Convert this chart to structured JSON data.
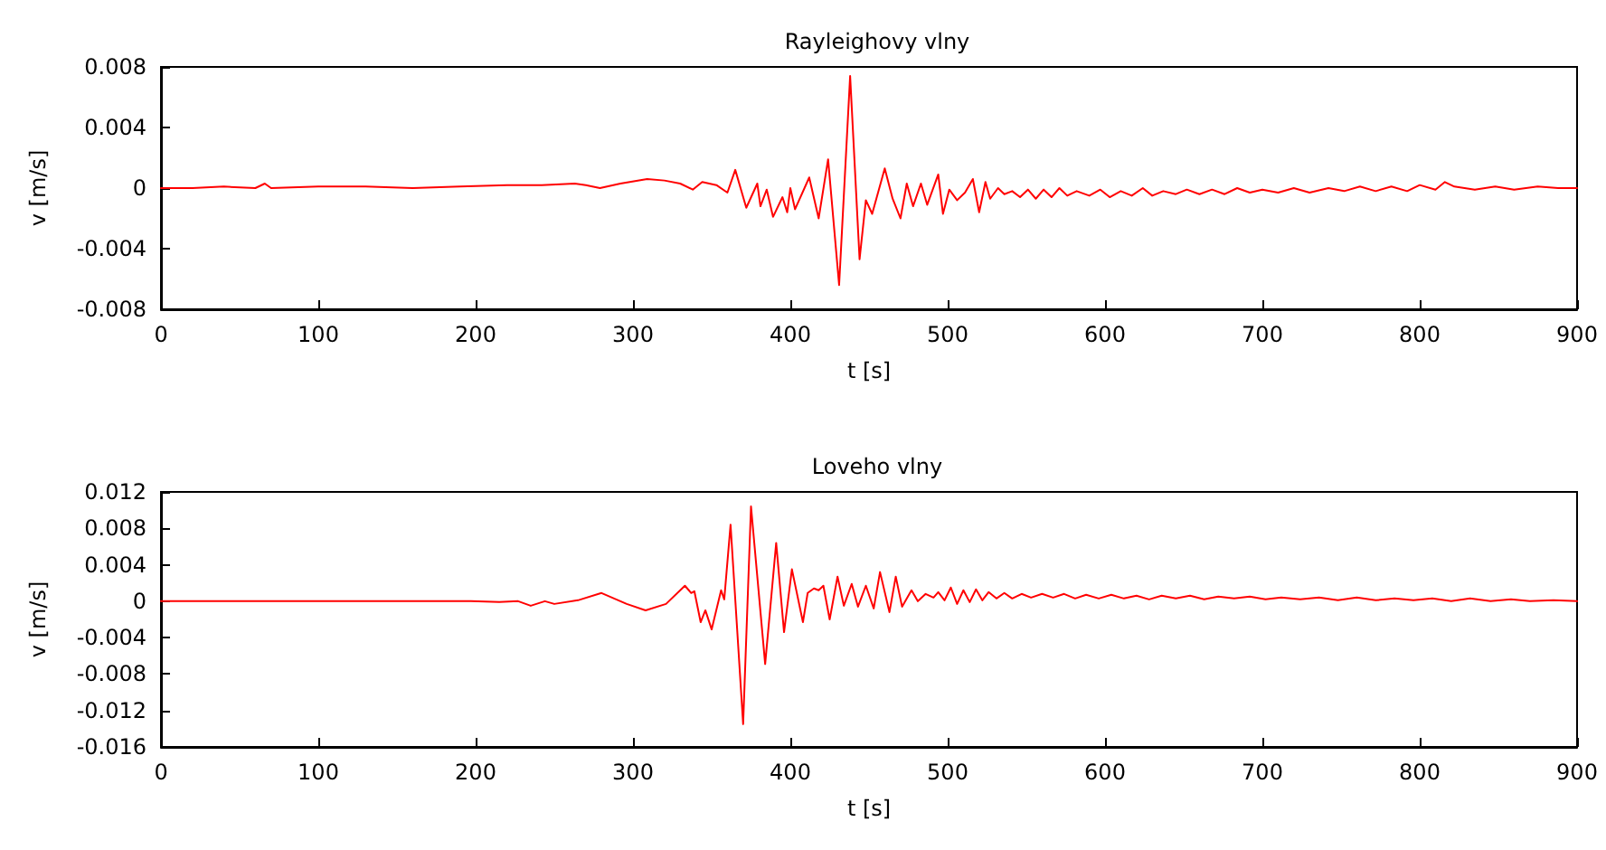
{
  "chart_data": [
    {
      "type": "line",
      "title": "Rayleighovy vlny",
      "xlabel": "t [s]",
      "ylabel": "v [m/s]",
      "xlim": [
        0,
        900
      ],
      "xticks": [
        0,
        100,
        200,
        300,
        400,
        500,
        600,
        700,
        800,
        900
      ],
      "ylim": [
        -0.008,
        0.008
      ],
      "yticks": [
        -0.008,
        -0.004,
        0,
        0.004,
        0.008
      ],
      "grid": false,
      "marker": "none",
      "line_style": "solid",
      "series": [
        {
          "color": "#ff0000",
          "x": [
            0,
            20,
            40,
            60,
            66,
            70,
            100,
            130,
            160,
            190,
            220,
            242,
            263,
            270,
            279,
            292,
            309,
            320,
            330,
            338,
            344,
            353,
            360,
            365,
            372,
            379,
            381,
            385,
            389,
            395,
            398,
            400,
            403,
            412,
            418,
            424,
            431,
            438,
            444,
            448,
            452,
            460,
            465,
            470,
            474,
            478,
            483,
            487,
            494,
            497,
            501,
            506,
            511,
            516,
            520,
            524,
            527,
            532,
            536,
            541,
            546,
            551,
            556,
            561,
            566,
            571,
            576,
            582,
            590,
            597,
            603,
            610,
            617,
            624,
            630,
            637,
            645,
            652,
            660,
            668,
            676,
            684,
            692,
            700,
            710,
            720,
            730,
            742,
            752,
            762,
            772,
            782,
            792,
            800,
            810,
            816,
            822,
            835,
            848,
            860,
            875,
            888,
            900
          ],
          "values": [
            0,
            0,
            0.0001,
            0,
            0.0003,
            0,
            0.0001,
            0.0001,
            0,
            0.0001,
            0.0002,
            0.0002,
            0.0003,
            0.0002,
            0,
            0.0003,
            0.0006,
            0.0005,
            0.0003,
            -0.0001,
            0.0004,
            0.0002,
            -0.0003,
            0.0012,
            -0.0013,
            0.0003,
            -0.0012,
            -0.0001,
            -0.0019,
            -0.0006,
            -0.0016,
            0,
            -0.0014,
            0.0007,
            -0.002,
            0.0019,
            -0.0064,
            0.0074,
            -0.0047,
            -0.0008,
            -0.0017,
            0.0013,
            -0.0007,
            -0.002,
            0.0003,
            -0.0012,
            0.0003,
            -0.0011,
            0.0009,
            -0.0017,
            -0.0001,
            -0.0008,
            -0.0003,
            0.0006,
            -0.0016,
            0.0004,
            -0.0007,
            0,
            -0.0004,
            -0.0002,
            -0.0006,
            -0.0001,
            -0.0007,
            -0.0001,
            -0.0006,
            0,
            -0.0005,
            -0.0002,
            -0.0005,
            -0.0001,
            -0.0006,
            -0.0002,
            -0.0005,
            0,
            -0.0005,
            -0.0002,
            -0.0004,
            -0.0001,
            -0.0004,
            -0.0001,
            -0.0004,
            0,
            -0.0003,
            -0.0001,
            -0.0003,
            0,
            -0.0003,
            0,
            -0.0002,
            0.0001,
            -0.0002,
            0.0001,
            -0.0002,
            0.0002,
            -0.0001,
            0.0004,
            0.0001,
            -0.0001,
            0.0001,
            -0.0001,
            0.0001,
            0,
            0
          ]
        }
      ]
    },
    {
      "type": "line",
      "title": "Loveho vlny",
      "xlabel": "t [s]",
      "ylabel": "v [m/s]",
      "xlim": [
        0,
        900
      ],
      "xticks": [
        0,
        100,
        200,
        300,
        400,
        500,
        600,
        700,
        800,
        900
      ],
      "ylim": [
        -0.016,
        0.012
      ],
      "yticks": [
        -0.016,
        -0.012,
        -0.008,
        -0.004,
        0,
        0.004,
        0.008,
        0.012
      ],
      "grid": false,
      "marker": "none",
      "line_style": "solid",
      "series": [
        {
          "color": "#ff0000",
          "x": [
            0,
            50,
            100,
            150,
            197,
            215,
            227,
            235,
            244,
            250,
            265,
            280,
            296,
            308,
            321,
            333,
            337,
            339,
            343,
            346,
            350,
            356,
            358,
            362,
            370,
            375,
            384,
            391,
            396,
            401,
            408,
            411,
            415,
            418,
            421,
            425,
            430,
            434,
            439,
            443,
            448,
            453,
            457,
            463,
            467,
            471,
            477,
            481,
            486,
            491,
            494,
            498,
            502,
            506,
            510,
            514,
            518,
            522,
            526,
            531,
            536,
            541,
            547,
            553,
            560,
            567,
            574,
            581,
            588,
            596,
            604,
            612,
            620,
            628,
            636,
            645,
            654,
            663,
            672,
            682,
            692,
            702,
            712,
            724,
            736,
            748,
            760,
            772,
            784,
            796,
            808,
            820,
            832,
            845,
            858,
            870,
            885,
            900
          ],
          "values": [
            0,
            0,
            0,
            0,
            0,
            -0.0001,
            0,
            -0.0005,
            0,
            -0.0003,
            0.0001,
            0.0009,
            -0.0003,
            -0.001,
            -0.0003,
            0.0017,
            0.0009,
            0.0011,
            -0.0023,
            -0.001,
            -0.0031,
            0.0012,
            0.0002,
            0.0084,
            -0.0135,
            0.0104,
            -0.0069,
            0.0064,
            -0.0034,
            0.0035,
            -0.0023,
            0.0009,
            0.0014,
            0.0012,
            0.0017,
            -0.002,
            0.0027,
            -0.0005,
            0.0019,
            -0.0006,
            0.0017,
            -0.0008,
            0.0032,
            -0.0012,
            0.0027,
            -0.0006,
            0.0012,
            0,
            0.0008,
            0.0004,
            0.001,
            0.0001,
            0.0015,
            -0.0003,
            0.0012,
            -0.0001,
            0.0013,
            0.0001,
            0.001,
            0.0003,
            0.0009,
            0.0003,
            0.0008,
            0.0004,
            0.0008,
            0.0004,
            0.0008,
            0.0003,
            0.0007,
            0.0003,
            0.0007,
            0.0003,
            0.0006,
            0.0002,
            0.0006,
            0.0003,
            0.0006,
            0.0002,
            0.0005,
            0.0003,
            0.0005,
            0.0002,
            0.0004,
            0.0002,
            0.0004,
            0.0001,
            0.0004,
            0.0001,
            0.0003,
            0.0001,
            0.0003,
            0,
            0.0003,
            0,
            0.0002,
            0,
            0.0001,
            0
          ]
        }
      ]
    }
  ]
}
